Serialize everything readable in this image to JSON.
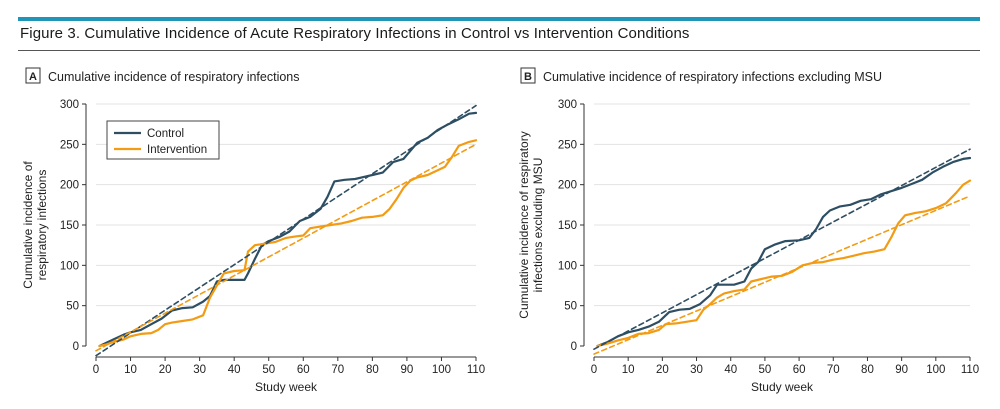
{
  "header": {
    "title": "Figure 3. Cumulative Incidence of Acute Respiratory Infections in Control vs Intervention Conditions",
    "accent_color": "#1f96b8"
  },
  "colors": {
    "control": "#2d4e63",
    "intervention": "#f29b13",
    "grid": "#e3e3e3",
    "axis": "#333333"
  },
  "chart_data": [
    {
      "type": "line",
      "panel_label": "A",
      "title": "Cumulative incidence of respiratory infections",
      "xlabel": "Study week",
      "ylabel_lines": [
        "Cumulative incidence of",
        "respiratory infections"
      ],
      "xlim": [
        0,
        110
      ],
      "ylim": [
        0,
        300
      ],
      "xticks": [
        0,
        10,
        20,
        30,
        40,
        50,
        60,
        70,
        80,
        90,
        100,
        110
      ],
      "yticks": [
        0,
        50,
        100,
        150,
        200,
        250,
        300
      ],
      "grid": true,
      "legend": {
        "position": "top-left",
        "entries": [
          "Control",
          "Intervention"
        ]
      },
      "series": [
        {
          "name": "Control",
          "style": "solid",
          "x": [
            1,
            3,
            5,
            8,
            10,
            13,
            16,
            19,
            22,
            25,
            28,
            31,
            33,
            35,
            37,
            40,
            43,
            44,
            46,
            48,
            50,
            53,
            56,
            59,
            62,
            65,
            67,
            69,
            72,
            75,
            78,
            80,
            83,
            86,
            89,
            91,
            93,
            96,
            99,
            102,
            105,
            108,
            110
          ],
          "y": [
            0,
            4,
            8,
            14,
            17,
            20,
            27,
            34,
            44,
            47,
            48,
            55,
            62,
            80,
            82,
            82,
            82,
            90,
            108,
            125,
            130,
            135,
            142,
            155,
            160,
            170,
            185,
            204,
            206,
            207,
            210,
            212,
            215,
            228,
            232,
            242,
            252,
            258,
            268,
            275,
            281,
            288,
            289
          ]
        },
        {
          "name": "Intervention",
          "style": "solid",
          "x": [
            1,
            3,
            5,
            8,
            10,
            13,
            16,
            18,
            20,
            22,
            25,
            28,
            31,
            33,
            35,
            37,
            40,
            43,
            44,
            46,
            49,
            52,
            55,
            58,
            60,
            62,
            65,
            68,
            71,
            74,
            77,
            80,
            83,
            85,
            87,
            89,
            91,
            93,
            96,
            99,
            101,
            103,
            105,
            108,
            110
          ],
          "y": [
            0,
            2,
            5,
            8,
            12,
            15,
            16,
            20,
            27,
            29,
            31,
            33,
            38,
            60,
            75,
            90,
            93,
            94,
            117,
            125,
            127,
            129,
            134,
            136,
            137,
            146,
            148,
            150,
            152,
            155,
            159,
            160,
            162,
            170,
            182,
            196,
            205,
            209,
            212,
            218,
            222,
            234,
            248,
            253,
            255
          ]
        },
        {
          "name": "Control trend",
          "style": "dashed",
          "x": [
            0,
            110
          ],
          "y": [
            -12,
            298
          ]
        },
        {
          "name": "Intervention trend",
          "style": "dashed",
          "x": [
            0,
            110
          ],
          "y": [
            -6,
            250
          ]
        }
      ]
    },
    {
      "type": "line",
      "panel_label": "B",
      "title": "Cumulative incidence of respiratory infections excluding MSU",
      "xlabel": "Study week",
      "ylabel_lines": [
        "Cumulative incidence of respiratory",
        "infections excluding MSU"
      ],
      "xlim": [
        0,
        110
      ],
      "ylim": [
        0,
        300
      ],
      "xticks": [
        0,
        10,
        20,
        30,
        40,
        50,
        60,
        70,
        80,
        90,
        100,
        110
      ],
      "yticks": [
        0,
        50,
        100,
        150,
        200,
        250,
        300
      ],
      "grid": true,
      "series": [
        {
          "name": "Control",
          "style": "solid",
          "x": [
            1,
            4,
            7,
            10,
            13,
            16,
            19,
            22,
            25,
            28,
            31,
            34,
            36,
            38,
            41,
            44,
            46,
            48,
            50,
            53,
            56,
            60,
            63,
            65,
            67,
            69,
            72,
            75,
            78,
            81,
            84,
            87,
            90,
            93,
            96,
            99,
            102,
            105,
            108,
            110
          ],
          "y": [
            0,
            5,
            12,
            17,
            20,
            24,
            30,
            42,
            45,
            46,
            52,
            63,
            76,
            76,
            76,
            80,
            96,
            104,
            120,
            126,
            130,
            131,
            134,
            145,
            160,
            168,
            173,
            175,
            180,
            182,
            188,
            192,
            196,
            201,
            206,
            215,
            222,
            228,
            232,
            233
          ]
        },
        {
          "name": "Intervention",
          "style": "solid",
          "x": [
            1,
            4,
            7,
            10,
            13,
            16,
            19,
            21,
            24,
            27,
            30,
            32,
            34,
            36,
            38,
            41,
            44,
            46,
            49,
            52,
            55,
            58,
            61,
            64,
            67,
            70,
            73,
            76,
            79,
            82,
            85,
            87,
            89,
            91,
            94,
            97,
            100,
            103,
            106,
            108,
            110
          ],
          "y": [
            0,
            3,
            7,
            10,
            15,
            16,
            20,
            27,
            28,
            30,
            32,
            45,
            52,
            60,
            65,
            68,
            70,
            80,
            83,
            86,
            87,
            92,
            100,
            103,
            104,
            107,
            109,
            112,
            115,
            117,
            120,
            135,
            152,
            162,
            165,
            167,
            171,
            177,
            190,
            200,
            205
          ]
        },
        {
          "name": "Control trend",
          "style": "dashed",
          "x": [
            0,
            110
          ],
          "y": [
            -4,
            244
          ]
        },
        {
          "name": "Intervention trend",
          "style": "dashed",
          "x": [
            0,
            110
          ],
          "y": [
            -10,
            186
          ]
        }
      ]
    }
  ]
}
